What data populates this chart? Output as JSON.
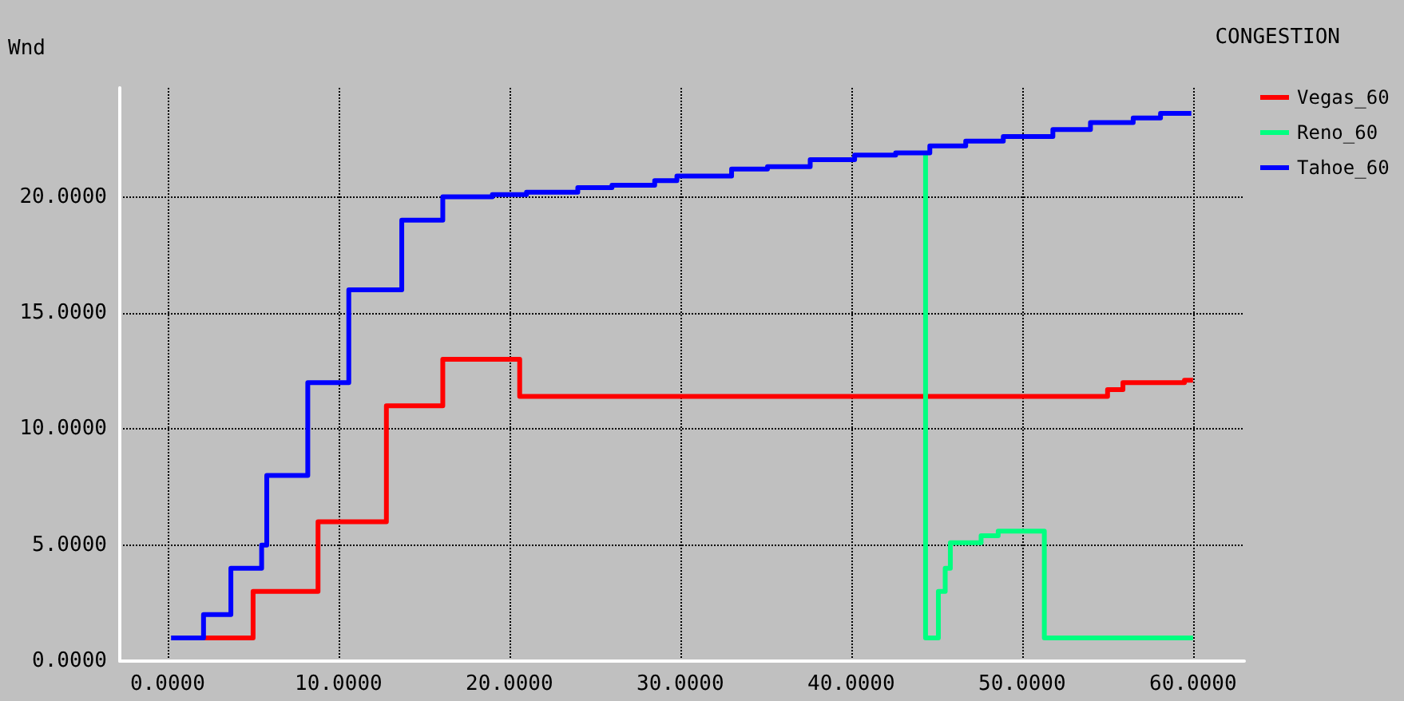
{
  "chart_data": {
    "type": "step",
    "title": "CONGESTION",
    "ylabel": "Wnd",
    "xlim": [
      -2.8,
      63
    ],
    "ylim": [
      0,
      24.7
    ],
    "xticks": [
      {
        "value": 0,
        "label": "0.0000"
      },
      {
        "value": 10,
        "label": "10.0000"
      },
      {
        "value": 20,
        "label": "20.0000"
      },
      {
        "value": 30,
        "label": "30.0000"
      },
      {
        "value": 40,
        "label": "40.0000"
      },
      {
        "value": 50,
        "label": "50.0000"
      },
      {
        "value": 60,
        "label": "60.0000"
      }
    ],
    "yticks": [
      {
        "value": 0,
        "label": "0.0000"
      },
      {
        "value": 5,
        "label": "5.0000"
      },
      {
        "value": 10,
        "label": "10.0000"
      },
      {
        "value": 15,
        "label": "15.0000"
      },
      {
        "value": 20,
        "label": "20.0000"
      }
    ],
    "grid": true,
    "legend": "top right",
    "marker": "none",
    "line_style": "solid",
    "series": [
      {
        "name": "Vegas_60",
        "color": "#ff0000",
        "x": [
          2.1,
          5.0,
          8.8,
          12.8,
          16.1,
          20.6,
          55.0,
          55.9,
          59.5,
          60
        ],
        "values": [
          1,
          3,
          6,
          11,
          13,
          11.4,
          11.7,
          12.0,
          12.1,
          12.1
        ]
      },
      {
        "name": "Reno_60",
        "color": "#00ff80",
        "x": [
          44.35,
          44.35,
          45.1,
          45.5,
          45.8,
          47.6,
          48.6,
          51.3,
          60
        ],
        "values": [
          21.9,
          1,
          3,
          4,
          5.1,
          5.4,
          5.6,
          1,
          1
        ]
      },
      {
        "name": "Tahoe_60",
        "color": "#0000ff",
        "x": [
          0.2,
          2.1,
          3.7,
          5.5,
          5.8,
          8.2,
          10.6,
          13.7,
          16.1,
          19.0,
          21.0,
          24.0,
          26.0,
          28.5,
          29.8,
          33.0,
          35.1,
          37.6,
          40.2,
          42.6,
          44.6,
          46.7,
          48.9,
          51.8,
          54.0,
          56.5,
          58.1,
          59.9
        ],
        "values": [
          1,
          2,
          4,
          5,
          8,
          12,
          16,
          19,
          20,
          20.1,
          20.2,
          20.4,
          20.5,
          20.7,
          20.9,
          21.2,
          21.3,
          21.6,
          21.8,
          21.9,
          22.2,
          22.4,
          22.6,
          22.9,
          23.2,
          23.4,
          23.6,
          23.6
        ]
      }
    ]
  }
}
